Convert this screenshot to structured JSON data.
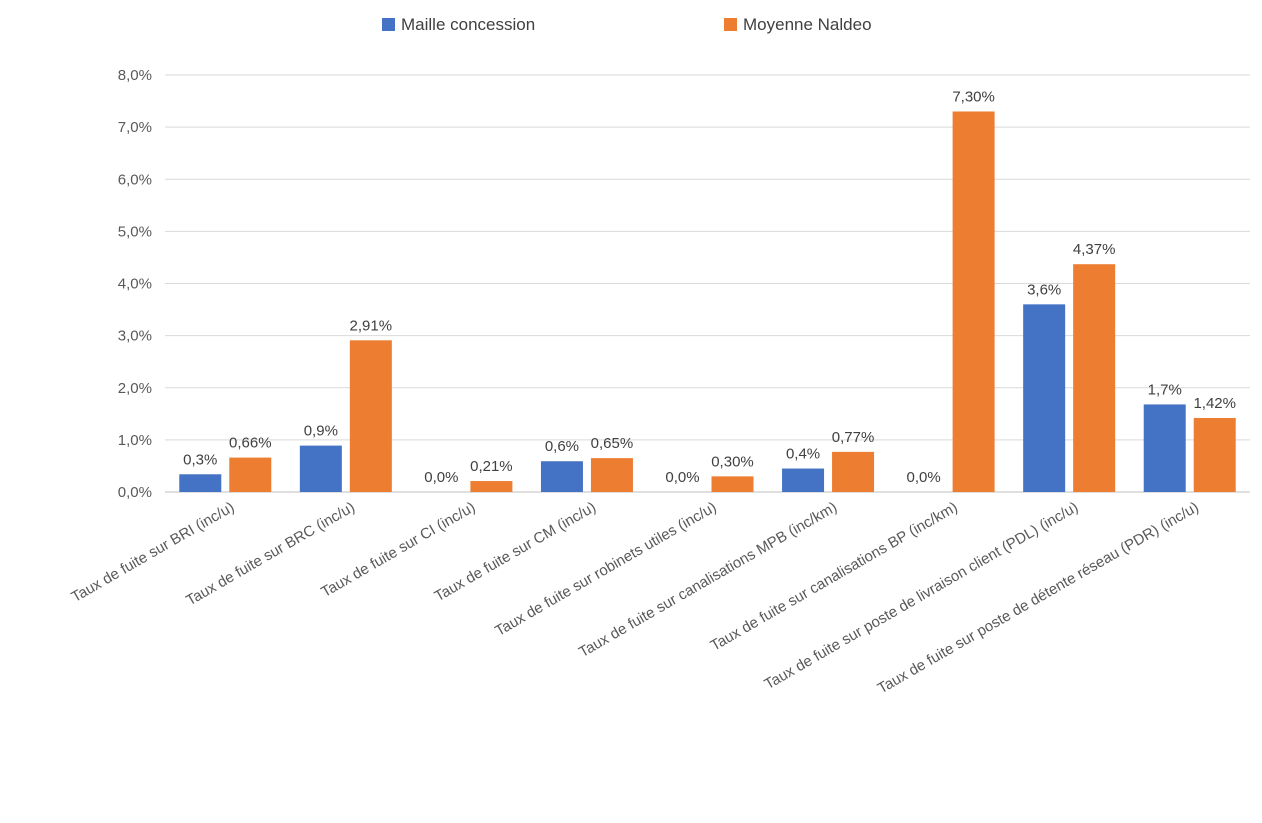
{
  "chart_data": {
    "type": "bar",
    "categories": [
      "Taux de fuite sur BRI (inc/u)",
      "Taux de fuite sur BRC (inc/u)",
      "Taux de fuite sur CI (inc/u)",
      "Taux de fuite sur CM (inc/u)",
      "Taux de fuite sur robinets utiles (inc/u)",
      "Taux de fuite sur canalisations MPB (inc/km)",
      "Taux de fuite sur canalisations BP (inc/km)",
      "Taux de fuite sur poste de livraison client (PDL) (inc/u)",
      "Taux de fuite sur poste de détente réseau (PDR) (inc/u)"
    ],
    "series": [
      {
        "name": "Maille concession",
        "color": "#4472c4",
        "values": [
          0.34,
          0.89,
          0.0,
          0.59,
          0.0,
          0.45,
          0.0,
          3.6,
          1.68
        ],
        "labels": [
          "0,3%",
          "0,9%",
          "0,0%",
          "0,6%",
          "0,0%",
          "0,4%",
          "0,0%",
          "3,6%",
          "1,7%"
        ]
      },
      {
        "name": "Moyenne Naldeo",
        "color": "#ed7d31",
        "values": [
          0.66,
          2.91,
          0.21,
          0.65,
          0.3,
          0.77,
          7.3,
          4.37,
          1.42
        ],
        "labels": [
          "0,66%",
          "2,91%",
          "0,21%",
          "0,65%",
          "0,30%",
          "0,77%",
          "7,30%",
          "4,37%",
          "1,42%"
        ]
      }
    ],
    "yTicks": [
      "0,0%",
      "1,0%",
      "2,0%",
      "3,0%",
      "4,0%",
      "5,0%",
      "6,0%",
      "7,0%",
      "8,0%"
    ],
    "ylim": [
      0,
      8
    ],
    "grid": true,
    "legend": "top-center",
    "title": "",
    "xlabel": "",
    "ylabel": ""
  }
}
